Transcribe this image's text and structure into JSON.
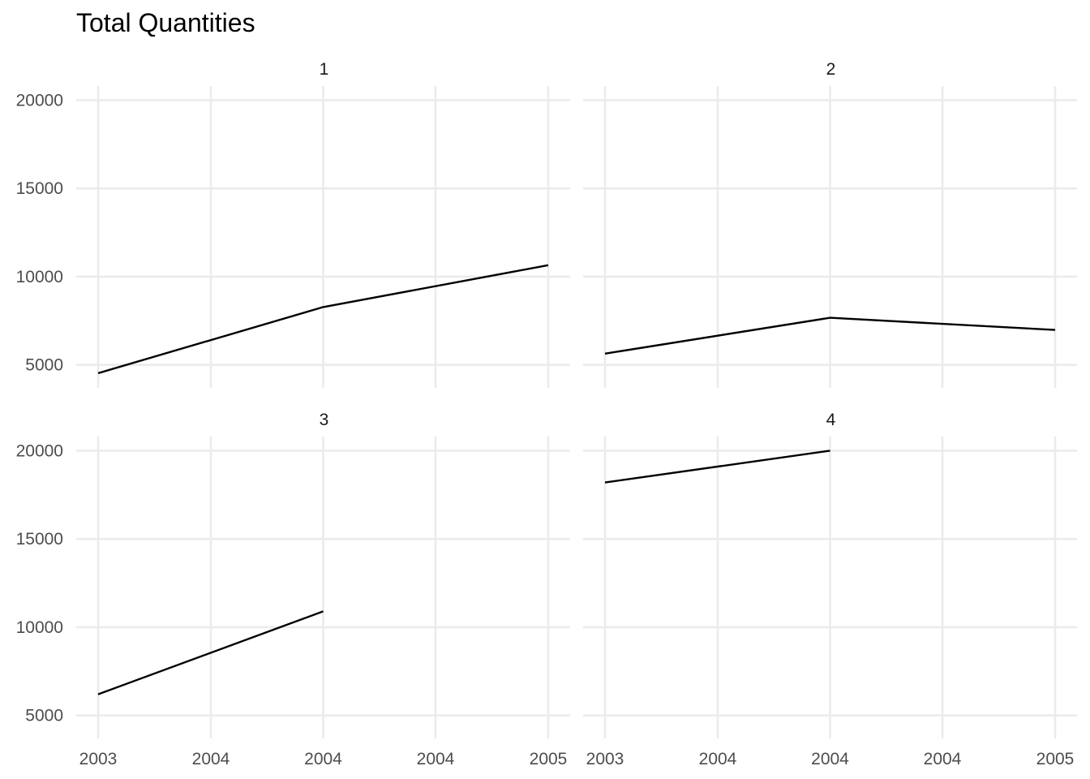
{
  "chart_data": {
    "type": "line",
    "title": "Total Quantities",
    "xlabel": "",
    "ylabel": "",
    "x_ticks": [
      "2003",
      "2004",
      "2004",
      "2004",
      "2005"
    ],
    "y_ticks": [
      5000,
      10000,
      15000,
      20000
    ],
    "ylim": [
      3700,
      20800
    ],
    "grid": true,
    "facets": [
      {
        "label": "1",
        "points": [
          {
            "x": 2003.0,
            "y": 4530
          },
          {
            "x": 2004.0,
            "y": 8280
          },
          {
            "x": 2005.0,
            "y": 10650
          }
        ]
      },
      {
        "label": "2",
        "points": [
          {
            "x": 2003.0,
            "y": 5640
          },
          {
            "x": 2004.0,
            "y": 7670
          },
          {
            "x": 2005.0,
            "y": 6980
          }
        ]
      },
      {
        "label": "3",
        "points": [
          {
            "x": 2003.0,
            "y": 6200
          },
          {
            "x": 2004.0,
            "y": 10900
          }
        ]
      },
      {
        "label": "4",
        "points": [
          {
            "x": 2003.0,
            "y": 18200
          },
          {
            "x": 2004.0,
            "y": 20000
          }
        ]
      }
    ]
  }
}
